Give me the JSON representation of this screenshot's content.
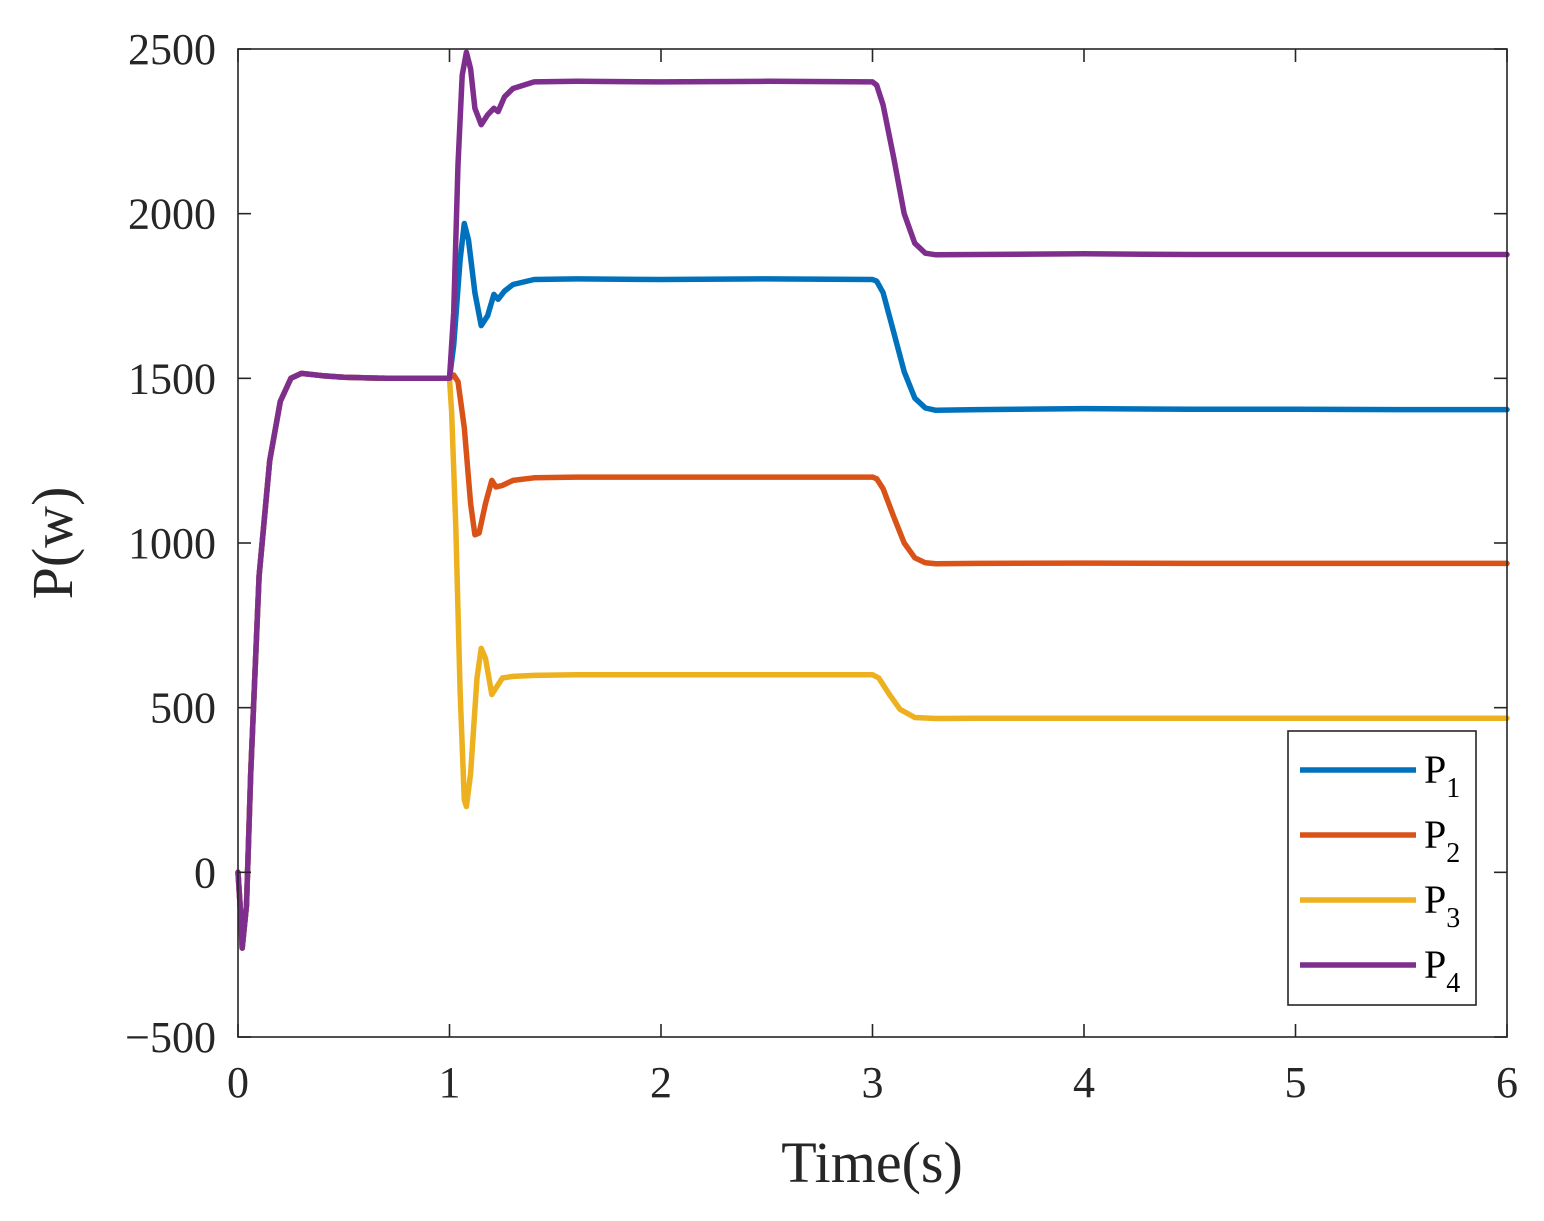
{
  "chart_data": {
    "type": "line",
    "xlabel": "Time(s)",
    "ylabel": "P(w)",
    "xlim": [
      0,
      6
    ],
    "ylim": [
      -500,
      2500
    ],
    "x_ticks": [
      "0",
      "1",
      "2",
      "3",
      "4",
      "5",
      "6"
    ],
    "y_ticks": [
      "-500",
      "0",
      "500",
      "1000",
      "1500",
      "2000",
      "2500"
    ],
    "grid": false,
    "legend_position": "bottom-right",
    "series": [
      {
        "name": "P",
        "subscript": "1",
        "color": "#0072BD",
        "points": [
          [
            0,
            0
          ],
          [
            0.01,
            -100
          ],
          [
            0.02,
            -230
          ],
          [
            0.04,
            -100
          ],
          [
            0.06,
            300
          ],
          [
            0.1,
            900
          ],
          [
            0.15,
            1250
          ],
          [
            0.2,
            1430
          ],
          [
            0.25,
            1500
          ],
          [
            0.3,
            1515
          ],
          [
            0.4,
            1508
          ],
          [
            0.5,
            1503
          ],
          [
            0.7,
            1500
          ],
          [
            1.0,
            1500
          ],
          [
            1.02,
            1600
          ],
          [
            1.05,
            1860
          ],
          [
            1.07,
            1970
          ],
          [
            1.09,
            1920
          ],
          [
            1.12,
            1760
          ],
          [
            1.15,
            1660
          ],
          [
            1.18,
            1690
          ],
          [
            1.21,
            1755
          ],
          [
            1.23,
            1740
          ],
          [
            1.26,
            1765
          ],
          [
            1.3,
            1785
          ],
          [
            1.4,
            1800
          ],
          [
            1.6,
            1802
          ],
          [
            2.0,
            1800
          ],
          [
            2.5,
            1802
          ],
          [
            3.0,
            1800
          ],
          [
            3.02,
            1795
          ],
          [
            3.05,
            1760
          ],
          [
            3.1,
            1640
          ],
          [
            3.15,
            1520
          ],
          [
            3.2,
            1440
          ],
          [
            3.25,
            1410
          ],
          [
            3.3,
            1403
          ],
          [
            3.5,
            1405
          ],
          [
            4.0,
            1408
          ],
          [
            4.5,
            1406
          ],
          [
            5.0,
            1406
          ],
          [
            5.5,
            1405
          ],
          [
            6.0,
            1405
          ]
        ]
      },
      {
        "name": "P",
        "subscript": "2",
        "color": "#D95319",
        "points": [
          [
            0,
            0
          ],
          [
            0.01,
            -100
          ],
          [
            0.02,
            -230
          ],
          [
            0.04,
            -100
          ],
          [
            0.06,
            300
          ],
          [
            0.1,
            900
          ],
          [
            0.15,
            1250
          ],
          [
            0.2,
            1430
          ],
          [
            0.25,
            1500
          ],
          [
            0.3,
            1515
          ],
          [
            0.4,
            1508
          ],
          [
            0.5,
            1503
          ],
          [
            0.7,
            1500
          ],
          [
            1.0,
            1500
          ],
          [
            1.02,
            1510
          ],
          [
            1.04,
            1490
          ],
          [
            1.07,
            1350
          ],
          [
            1.1,
            1120
          ],
          [
            1.12,
            1025
          ],
          [
            1.14,
            1030
          ],
          [
            1.17,
            1120
          ],
          [
            1.2,
            1190
          ],
          [
            1.22,
            1170
          ],
          [
            1.25,
            1175
          ],
          [
            1.3,
            1190
          ],
          [
            1.4,
            1198
          ],
          [
            1.6,
            1200
          ],
          [
            2.0,
            1200
          ],
          [
            2.5,
            1200
          ],
          [
            3.0,
            1200
          ],
          [
            3.02,
            1195
          ],
          [
            3.05,
            1165
          ],
          [
            3.1,
            1080
          ],
          [
            3.15,
            1000
          ],
          [
            3.2,
            955
          ],
          [
            3.25,
            940
          ],
          [
            3.3,
            937
          ],
          [
            3.5,
            938
          ],
          [
            4.0,
            939
          ],
          [
            4.5,
            938
          ],
          [
            5.0,
            938
          ],
          [
            5.5,
            938
          ],
          [
            6.0,
            938
          ]
        ]
      },
      {
        "name": "P",
        "subscript": "3",
        "color": "#EDB120",
        "points": [
          [
            0,
            0
          ],
          [
            0.01,
            -100
          ],
          [
            0.02,
            -230
          ],
          [
            0.04,
            -100
          ],
          [
            0.06,
            300
          ],
          [
            0.1,
            900
          ],
          [
            0.15,
            1250
          ],
          [
            0.2,
            1430
          ],
          [
            0.25,
            1500
          ],
          [
            0.3,
            1515
          ],
          [
            0.4,
            1508
          ],
          [
            0.5,
            1503
          ],
          [
            0.7,
            1500
          ],
          [
            1.0,
            1500
          ],
          [
            1.01,
            1400
          ],
          [
            1.03,
            1050
          ],
          [
            1.05,
            550
          ],
          [
            1.07,
            220
          ],
          [
            1.08,
            200
          ],
          [
            1.1,
            300
          ],
          [
            1.13,
            590
          ],
          [
            1.15,
            680
          ],
          [
            1.17,
            650
          ],
          [
            1.2,
            540
          ],
          [
            1.22,
            560
          ],
          [
            1.25,
            590
          ],
          [
            1.3,
            595
          ],
          [
            1.4,
            598
          ],
          [
            1.6,
            600
          ],
          [
            2.0,
            600
          ],
          [
            2.5,
            600
          ],
          [
            3.0,
            600
          ],
          [
            3.03,
            590
          ],
          [
            3.08,
            540
          ],
          [
            3.13,
            495
          ],
          [
            3.2,
            470
          ],
          [
            3.3,
            467
          ],
          [
            3.5,
            468
          ],
          [
            4.0,
            468
          ],
          [
            5.0,
            468
          ],
          [
            6.0,
            468
          ]
        ]
      },
      {
        "name": "P",
        "subscript": "4",
        "color": "#7E2F8E",
        "points": [
          [
            0,
            0
          ],
          [
            0.01,
            -100
          ],
          [
            0.02,
            -230
          ],
          [
            0.04,
            -100
          ],
          [
            0.06,
            300
          ],
          [
            0.1,
            900
          ],
          [
            0.15,
            1250
          ],
          [
            0.2,
            1430
          ],
          [
            0.25,
            1500
          ],
          [
            0.3,
            1515
          ],
          [
            0.4,
            1508
          ],
          [
            0.5,
            1503
          ],
          [
            0.7,
            1500
          ],
          [
            1.0,
            1500
          ],
          [
            1.02,
            1700
          ],
          [
            1.04,
            2150
          ],
          [
            1.06,
            2420
          ],
          [
            1.08,
            2490
          ],
          [
            1.1,
            2440
          ],
          [
            1.12,
            2320
          ],
          [
            1.15,
            2270
          ],
          [
            1.18,
            2300
          ],
          [
            1.21,
            2320
          ],
          [
            1.23,
            2310
          ],
          [
            1.26,
            2355
          ],
          [
            1.3,
            2380
          ],
          [
            1.4,
            2400
          ],
          [
            1.6,
            2402
          ],
          [
            2.0,
            2400
          ],
          [
            2.5,
            2402
          ],
          [
            3.0,
            2400
          ],
          [
            3.02,
            2390
          ],
          [
            3.05,
            2330
          ],
          [
            3.1,
            2170
          ],
          [
            3.15,
            2000
          ],
          [
            3.2,
            1910
          ],
          [
            3.25,
            1880
          ],
          [
            3.3,
            1875
          ],
          [
            3.5,
            1876
          ],
          [
            4.0,
            1878
          ],
          [
            4.5,
            1876
          ],
          [
            5.0,
            1876
          ],
          [
            5.5,
            1876
          ],
          [
            6.0,
            1876
          ]
        ]
      }
    ]
  },
  "colors": {
    "axis": "#262626",
    "background": "#ffffff"
  }
}
